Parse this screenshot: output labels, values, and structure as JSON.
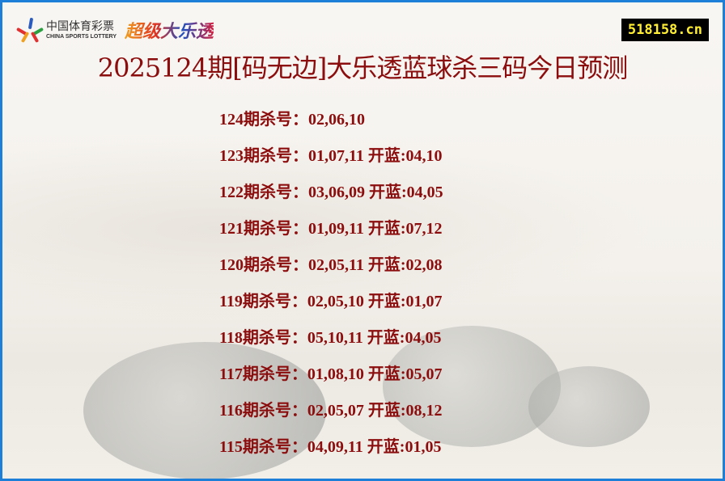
{
  "header": {
    "logo_cn": "中国体育彩票",
    "logo_en": "CHINA SPORTS LOTTERY",
    "logo_product": "超级大乐透",
    "site": "518158.cn",
    "title": "2025124期[码无边]大乐透蓝球杀三码今日预测"
  },
  "colors": {
    "border": "#1e7fd8",
    "text": "#8b0d0d",
    "site_bg": "#000000",
    "site_fg": "#ffee33"
  },
  "rows": [
    {
      "text": "124期杀号：02,06,10"
    },
    {
      "text": "123期杀号：01,07,11 开蓝:04,10"
    },
    {
      "text": "122期杀号：03,06,09 开蓝:04,05"
    },
    {
      "text": "121期杀号：01,09,11 开蓝:07,12"
    },
    {
      "text": "120期杀号：02,05,11 开蓝:02,08"
    },
    {
      "text": "119期杀号：02,05,10 开蓝:01,07"
    },
    {
      "text": "118期杀号：05,10,11 开蓝:04,05"
    },
    {
      "text": "117期杀号：01,08,10 开蓝:05,07"
    },
    {
      "text": "116期杀号：02,05,07 开蓝:08,12"
    },
    {
      "text": "115期杀号：04,09,11 开蓝:01,05"
    }
  ]
}
